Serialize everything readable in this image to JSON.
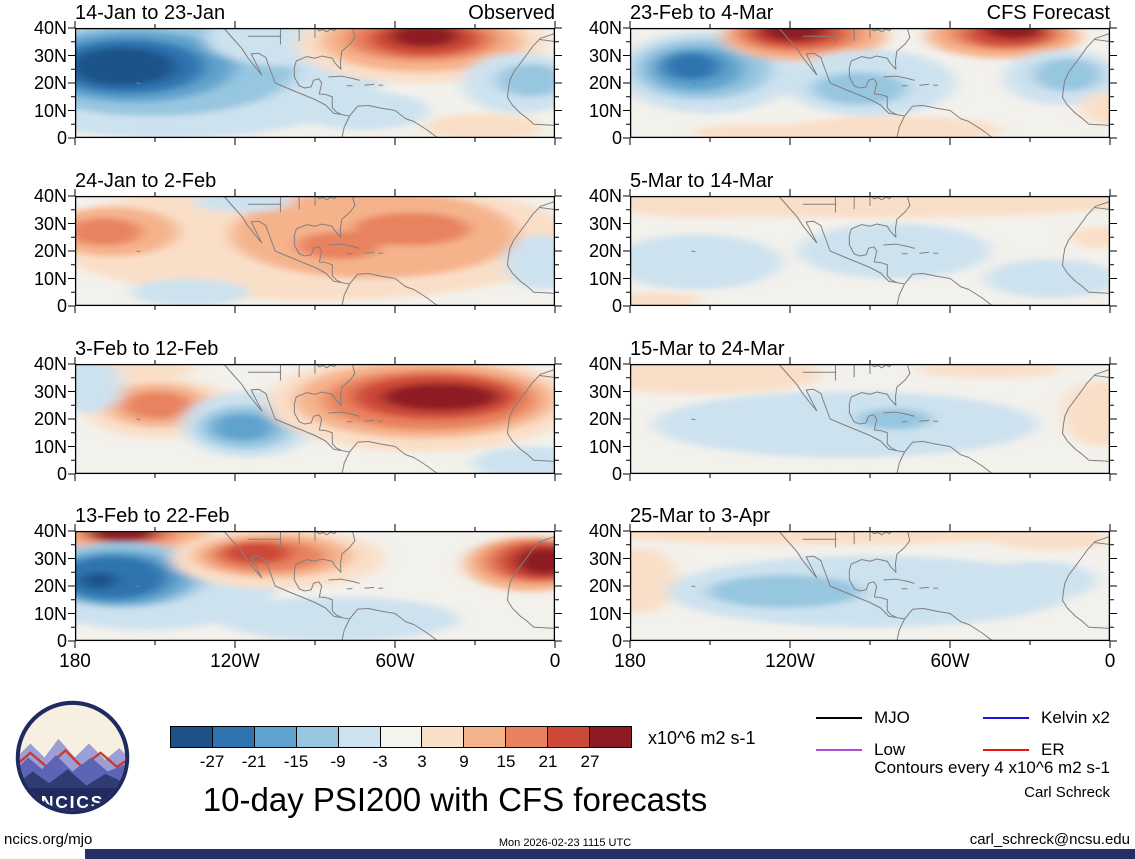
{
  "title": "10-day PSI200 with CFS forecasts",
  "logo": {
    "text": "NCICS"
  },
  "colorbar": {
    "ticks": [
      "-27",
      "-21",
      "-15",
      "-9",
      "-3",
      "3",
      "9",
      "15",
      "21",
      "27"
    ],
    "unit": "x10^6 m2 s-1"
  },
  "legend": {
    "items": [
      {
        "label": "MJO",
        "color": "#000000"
      },
      {
        "label": "Kelvin x2",
        "color": "#1515dd"
      },
      {
        "label": "Low",
        "color": "#b14fd8"
      },
      {
        "label": "ER",
        "color": "#ee1605"
      }
    ]
  },
  "notes": {
    "contours": "Contours every 4 x10^6 m2 s-1",
    "credit": "Carl Schreck",
    "site": "ncics.org/mjo",
    "timestamp": "Mon 2026-02-23 1115 UTC",
    "email": "carl_schreck@ncsu.edu"
  },
  "footer_bar_color": "#252f63",
  "chart_data": {
    "type": "heatmap",
    "subtype": "filled-contour anomaly maps, 4 rows x 2 columns (left column Observed, right column CFS Forecast)",
    "variable": "10-day mean PSI200 (200 hPa streamfunction anomaly)",
    "units": "x10^6 m2 s-1",
    "contour_interval": 4,
    "lon_range_degW": [
      180,
      0
    ],
    "lat_range_degN": [
      0,
      40
    ],
    "xlabel_ticks": [
      "180",
      "120W",
      "60W",
      "0"
    ],
    "ylabel_ticks": [
      "40N",
      "30N",
      "20N",
      "10N",
      "0"
    ],
    "levels": [
      -27,
      -21,
      -15,
      -9,
      -3,
      3,
      9,
      15,
      21,
      27
    ],
    "palette": [
      "#1c5289",
      "#2f74b0",
      "#5ea3cd",
      "#97c6e0",
      "#cde2ef",
      "#f5f3ee",
      "#fadfc8",
      "#f5b38c",
      "#e8825e",
      "#ce4a38",
      "#8e1a24"
    ],
    "neutral_color": "#f3f1ec",
    "feature_format": "[lon_degW, lat_degN, half_width_deglon, half_height_deglat, anomaly_value_1e6_m2s]",
    "panels": [
      {
        "title": "14-Jan to 23-Jan",
        "header_right": "Observed",
        "features": [
          [
            144,
            24,
            81,
            24,
            -5
          ],
          [
            151,
            25,
            54,
            17,
            -12
          ],
          [
            158,
            26,
            38,
            13,
            -18
          ],
          [
            160,
            26,
            29,
            10,
            -24
          ],
          [
            162,
            26,
            20,
            7,
            -28
          ],
          [
            99,
            36,
            32,
            10,
            -8
          ],
          [
            50,
            34,
            47,
            14,
            8
          ],
          [
            50,
            35,
            38,
            11,
            14
          ],
          [
            50,
            36,
            29,
            8,
            20
          ],
          [
            49,
            36,
            21,
            6,
            26
          ],
          [
            49,
            37,
            13,
            4,
            29
          ],
          [
            13,
            20,
            22,
            11,
            -8
          ],
          [
            9,
            21,
            13,
            6,
            -13
          ],
          [
            72,
            10,
            25,
            7,
            -5
          ],
          [
            27,
            4,
            22,
            5,
            5
          ]
        ]
      },
      {
        "title": "23-Feb to 4-Mar",
        "header_right": "CFS Forecast",
        "features": [
          [
            151,
            24,
            34,
            15,
            -8
          ],
          [
            153,
            25,
            26,
            11,
            -13
          ],
          [
            155,
            25,
            18,
            8,
            -19
          ],
          [
            157,
            26,
            11,
            5,
            -25
          ],
          [
            115,
            37,
            31,
            9,
            10
          ],
          [
            117,
            38,
            24,
            7,
            16
          ],
          [
            118,
            38,
            18,
            5,
            22
          ],
          [
            119,
            39,
            12,
            4,
            28
          ],
          [
            90,
            20,
            32,
            12,
            -6
          ],
          [
            94,
            18,
            18,
            6,
            -10
          ],
          [
            40,
            37,
            29,
            8,
            10
          ],
          [
            39,
            38,
            22,
            6,
            16
          ],
          [
            38,
            38,
            16,
            5,
            22
          ],
          [
            36,
            39,
            11,
            3,
            28
          ],
          [
            18,
            22,
            22,
            10,
            -8
          ],
          [
            16,
            23,
            13,
            6,
            -13
          ],
          [
            81,
            3,
            40,
            5,
            4
          ],
          [
            130,
            2,
            27,
            3,
            4
          ],
          [
            0,
            11,
            11,
            6,
            4
          ]
        ]
      },
      {
        "title": "24-Jan to 2-Feb",
        "features": [
          [
            90,
            24,
            99,
            22,
            4
          ],
          [
            166,
            27,
            25,
            9,
            10
          ],
          [
            169,
            27,
            14,
            5,
            17
          ],
          [
            68,
            26,
            54,
            16,
            10
          ],
          [
            72,
            25,
            40,
            12,
            14
          ],
          [
            81,
            22,
            16,
            5,
            21
          ],
          [
            54,
            28,
            22,
            6,
            17
          ],
          [
            5,
            16,
            14,
            10,
            -6
          ],
          [
            137,
            5,
            22,
            5,
            -4
          ],
          [
            117,
            38,
            18,
            4,
            -4
          ]
        ]
      },
      {
        "title": "5-Mar to 14-Mar",
        "features": [
          [
            90,
            38,
            99,
            6,
            4
          ],
          [
            153,
            37,
            32,
            5,
            6
          ],
          [
            155,
            16,
            32,
            10,
            -5
          ],
          [
            158,
            15,
            18,
            6,
            -8
          ],
          [
            81,
            20,
            36,
            10,
            -5
          ],
          [
            77,
            21,
            18,
            5,
            -8
          ],
          [
            4,
            25,
            11,
            4,
            6
          ],
          [
            22,
            10,
            25,
            7,
            -4
          ],
          [
            171,
            2,
            18,
            3,
            4
          ]
        ]
      },
      {
        "title": "3-Feb to 12-Feb",
        "features": [
          [
            162,
            38,
            27,
            4,
            4
          ],
          [
            148,
            24,
            29,
            11,
            8
          ],
          [
            149,
            25,
            20,
            8,
            13
          ],
          [
            149,
            25,
            13,
            5,
            17
          ],
          [
            176,
            32,
            14,
            10,
            -5
          ],
          [
            115,
            18,
            25,
            12,
            -8
          ],
          [
            116,
            17,
            18,
            8,
            -12
          ],
          [
            117,
            17,
            12,
            5,
            -17
          ],
          [
            50,
            26,
            58,
            18,
            8
          ],
          [
            49,
            27,
            49,
            14,
            14
          ],
          [
            47,
            27,
            40,
            11,
            20
          ],
          [
            45,
            28,
            31,
            8,
            26
          ],
          [
            43,
            28,
            22,
            5,
            30
          ],
          [
            9,
            4,
            22,
            6,
            -5
          ]
        ]
      },
      {
        "title": "15-Mar to 24-Mar",
        "features": [
          [
            153,
            36,
            45,
            7,
            5
          ],
          [
            162,
            37,
            22,
            4,
            7
          ],
          [
            99,
            18,
            72,
            12,
            -4
          ],
          [
            130,
            16,
            18,
            4,
            -8
          ],
          [
            99,
            18,
            22,
            5,
            -8
          ],
          [
            81,
            20,
            14,
            4,
            -11
          ],
          [
            4,
            22,
            14,
            12,
            4
          ],
          [
            45,
            38,
            27,
            3,
            4
          ]
        ]
      },
      {
        "title": "13-Feb to 22-Feb",
        "features": [
          [
            153,
            22,
            50,
            18,
            -5
          ],
          [
            158,
            38,
            29,
            6,
            10
          ],
          [
            159,
            39,
            24,
            5,
            15
          ],
          [
            160,
            39,
            19,
            4,
            21
          ],
          [
            162,
            39,
            13,
            3,
            28
          ],
          [
            162,
            24,
            32,
            12,
            -10
          ],
          [
            164,
            23,
            27,
            10,
            -16
          ],
          [
            166,
            23,
            21,
            8,
            -21
          ],
          [
            169,
            23,
            13,
            5,
            -26
          ],
          [
            171,
            22,
            7,
            3,
            -31
          ],
          [
            104,
            30,
            40,
            11,
            8
          ],
          [
            106,
            31,
            30,
            8,
            13
          ],
          [
            108,
            31,
            22,
            6,
            17
          ],
          [
            112,
            32,
            13,
            4,
            22
          ],
          [
            9,
            28,
            25,
            10,
            12
          ],
          [
            7,
            29,
            21,
            8,
            17
          ],
          [
            5,
            29,
            17,
            7,
            22
          ],
          [
            4,
            29,
            11,
            5,
            28
          ],
          [
            81,
            8,
            45,
            8,
            -5
          ],
          [
            72,
            9,
            22,
            5,
            -8
          ]
        ]
      },
      {
        "title": "25-Mar to 3-Apr",
        "features": [
          [
            108,
            39,
            81,
            4,
            4
          ],
          [
            176,
            22,
            14,
            12,
            6
          ],
          [
            90,
            18,
            76,
            13,
            -4
          ],
          [
            122,
            18,
            29,
            6,
            -10
          ],
          [
            126,
            18,
            18,
            4,
            -13
          ],
          [
            27,
            22,
            22,
            7,
            -6
          ],
          [
            22,
            37,
            22,
            4,
            4
          ]
        ]
      }
    ]
  }
}
